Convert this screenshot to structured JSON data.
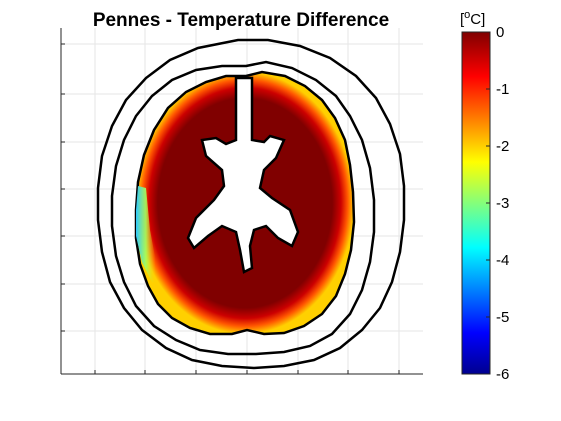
{
  "chart_data": {
    "type": "heatmap",
    "title": "Pennes - Temperature Difference",
    "colorbar": {
      "unit_base": "[",
      "unit_sup": "o",
      "unit_rest": "C]",
      "ticks": [
        "0",
        "-1",
        "-2",
        "-3",
        "-4",
        "-5",
        "-6"
      ],
      "range": [
        -6,
        0
      ],
      "colormap": "jet",
      "position": "right"
    },
    "x_tick_labels": [],
    "y_tick_labels": [],
    "grid": true,
    "colors": {
      "hot": "#800000",
      "outline": "#000000",
      "background": "#ffffff"
    }
  }
}
